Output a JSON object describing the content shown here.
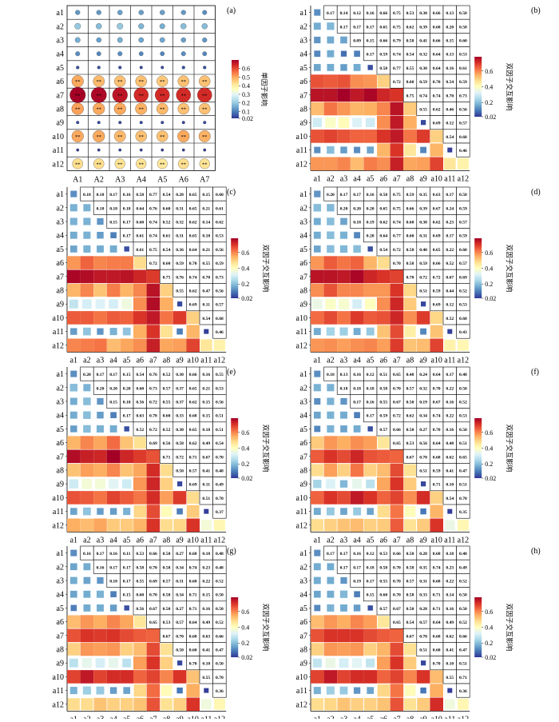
{
  "figure": {
    "panel_letters": [
      "(a)",
      "(b)",
      "(c)",
      "(d)",
      "(e)",
      "(f)",
      "(g)",
      "(h)"
    ]
  },
  "colors": {
    "scale": [
      "#313695",
      "#4575b4",
      "#74add1",
      "#abd9e9",
      "#e0f3f8",
      "#ffffbf",
      "#fee090",
      "#fdae61",
      "#f46d43",
      "#d73027",
      "#a50026"
    ],
    "grid_line": "#000000",
    "background": "#ffffff"
  },
  "chart_data": [
    {
      "type": "heatmap",
      "panel": "(a)",
      "marker": "circle",
      "rows": [
        "a1",
        "a2",
        "a3",
        "a4",
        "a5",
        "a6",
        "a7",
        "a8",
        "a9",
        "a10",
        "a11",
        "a12"
      ],
      "columns": [
        "A1",
        "A2",
        "A3",
        "A4",
        "A5",
        "A6",
        "A7"
      ],
      "colorbar": {
        "ticks": [
          "0.6",
          "0.5",
          "0.4",
          "0.3",
          "0.2",
          "0.1",
          "0.02"
        ],
        "min": 0.02,
        "max": 0.7,
        "label": "单因子影响"
      },
      "values": [
        [
          0.13,
          0.13,
          0.14,
          0.14,
          0.14,
          0.13,
          0.12
        ],
        [
          0.2,
          0.18,
          0.2,
          0.17,
          0.16,
          0.18,
          0.18
        ],
        [
          0.16,
          0.14,
          0.16,
          0.15,
          0.15,
          0.14,
          0.13
        ],
        [
          0.12,
          0.11,
          0.12,
          0.11,
          0.11,
          0.12,
          0.11
        ],
        [
          0.05,
          0.05,
          0.05,
          0.04,
          0.04,
          0.05,
          0.05
        ],
        [
          0.5,
          0.48,
          0.47,
          0.47,
          0.46,
          0.47,
          0.47
        ],
        [
          0.7,
          0.69,
          0.67,
          0.64,
          0.64,
          0.64,
          0.64
        ],
        [
          0.51,
          0.5,
          0.5,
          0.49,
          0.48,
          0.47,
          0.47
        ],
        [
          0.04,
          0.04,
          0.04,
          0.04,
          0.04,
          0.04,
          0.04
        ],
        [
          0.5,
          0.5,
          0.48,
          0.47,
          0.47,
          0.5,
          0.49
        ],
        [
          0.03,
          0.03,
          0.03,
          0.03,
          0.03,
          0.03,
          0.03
        ],
        [
          0.43,
          0.43,
          0.42,
          0.42,
          0.41,
          0.43,
          0.42
        ]
      ],
      "stars": [
        [
          "",
          "",
          "",
          "",
          "",
          "",
          ""
        ],
        [
          "",
          "",
          "",
          "",
          "",
          "",
          ""
        ],
        [
          "",
          "",
          "",
          "",
          "",
          "",
          ""
        ],
        [
          "",
          "",
          "",
          "",
          "",
          "",
          ""
        ],
        [
          "",
          "",
          "",
          "",
          "",
          "",
          ""
        ],
        [
          "**",
          "**",
          "**",
          "**",
          "**",
          "**",
          "**"
        ],
        [
          "**",
          "**",
          "**",
          "**",
          "**",
          "**",
          "**"
        ],
        [
          "**",
          "**",
          "**",
          "**",
          "**",
          "**",
          "**"
        ],
        [
          "",
          "",
          "",
          "",
          "",
          "",
          ""
        ],
        [
          "**",
          "**",
          "**",
          "**",
          "**",
          "**",
          "**"
        ],
        [
          "",
          "",
          "",
          "",
          "",
          "",
          ""
        ],
        [
          "**",
          "**",
          "**",
          "**",
          "**",
          "**",
          "**"
        ]
      ]
    },
    {
      "type": "heatmap",
      "panel": "(b)",
      "marker": "square",
      "labels": [
        "a1",
        "a2",
        "a3",
        "a4",
        "a5",
        "a6",
        "a7",
        "a8",
        "a9",
        "a10",
        "a11",
        "a12"
      ],
      "colorbar": {
        "ticks": [
          "0.6",
          "0.4",
          "0.2",
          "0.02"
        ],
        "min": 0.02,
        "max": 0.78,
        "label": "双因子交互影响"
      },
      "upper": [
        [
          "0.17",
          "0.14",
          "0.12",
          "0.16",
          "0.66",
          "0.75",
          "0.53",
          "0.30",
          "0.66",
          "0.13",
          "0.58"
        ],
        [
          "0.17",
          "0.17",
          "0.17",
          "0.65",
          "0.75",
          "0.62",
          "0.39",
          "0.68",
          "0.20",
          "0.58"
        ],
        [
          "0.09",
          "0.15",
          "0.66",
          "0.79",
          "0.58",
          "0.41",
          "0.66",
          "0.15",
          "0.60"
        ],
        [
          "0.17",
          "0.59",
          "0.74",
          "0.54",
          "0.32",
          "0.64",
          "0.13",
          "0.53"
        ],
        [
          "0.58",
          "0.77",
          "0.55",
          "0.30",
          "0.64",
          "0.16",
          "0.61"
        ],
        [
          "0.72",
          "0.60",
          "0.59",
          "0.70",
          "0.54",
          "0.59"
        ],
        [
          "0.75",
          "0.74",
          "0.74",
          "0.70",
          "0.73"
        ],
        [
          "0.55",
          "0.62",
          "0.46",
          "0.56"
        ],
        [
          "0.69",
          "0.12",
          "0.57"
        ],
        [
          "0.54",
          "0.68"
        ],
        [
          "0.46"
        ]
      ],
      "diag": [
        0.13,
        0.19,
        0.16,
        0.11,
        0.05,
        0.5,
        0.7,
        0.51,
        0.04,
        0.5,
        0.03,
        0.43
      ]
    },
    {
      "type": "heatmap",
      "panel": "(c)",
      "marker": "square",
      "labels": [
        "a1",
        "a2",
        "a3",
        "a4",
        "a5",
        "a6",
        "a7",
        "a8",
        "a9",
        "a10",
        "a11",
        "a12"
      ],
      "colorbar": {
        "ticks": [
          "0.6",
          "0.4",
          "0.2",
          "0.02"
        ],
        "min": 0.02,
        "max": 0.78,
        "label": "双因子交互影响"
      },
      "upper": [
        [
          "0.18",
          "0.18",
          "0.17",
          "0.16",
          "0.58",
          "0.77",
          "0.54",
          "0.28",
          "0.65",
          "0.15",
          "0.60"
        ],
        [
          "0.18",
          "0.18",
          "0.18",
          "0.64",
          "0.76",
          "0.60",
          "0.31",
          "0.65",
          "0.21",
          "0.61"
        ],
        [
          "0.15",
          "0.17",
          "0.60",
          "0.74",
          "0.52",
          "0.32",
          "0.62",
          "0.14",
          "0.62"
        ],
        [
          "0.17",
          "0.61",
          "0.74",
          "0.61",
          "0.31",
          "0.65",
          "0.18",
          "0.53"
        ],
        [
          "0.61",
          "0.75",
          "0.54",
          "0.36",
          "0.64",
          "0.21",
          "0.56"
        ],
        [
          "0.72",
          "0.60",
          "0.59",
          "0.70",
          "0.55",
          "0.59"
        ],
        [
          "0.75",
          "0.76",
          "0.74",
          "0.70",
          "0.73"
        ],
        [
          "0.55",
          "0.62",
          "0.47",
          "0.56"
        ],
        [
          "0.69",
          "0.11",
          "0.57"
        ],
        [
          "0.54",
          "0.68"
        ],
        [
          "0.46"
        ]
      ],
      "diag": [
        0.13,
        0.18,
        0.14,
        0.11,
        0.05,
        0.48,
        0.69,
        0.5,
        0.04,
        0.5,
        0.03,
        0.43
      ]
    },
    {
      "type": "heatmap",
      "panel": "(d)",
      "marker": "square",
      "labels": [
        "a1",
        "a2",
        "a3",
        "a4",
        "a5",
        "a6",
        "a7",
        "a8",
        "a9",
        "a10",
        "a11",
        "a12"
      ],
      "colorbar": {
        "ticks": [
          "0.6",
          "0.4",
          "0.2",
          "0.02"
        ],
        "min": 0.02,
        "max": 0.78,
        "label": "双因子交互影响"
      },
      "upper": [
        [
          "0.20",
          "0.17",
          "0.17",
          "0.16",
          "0.58",
          "0.75",
          "0.59",
          "0.35",
          "0.63",
          "0.17",
          "0.58"
        ],
        [
          "0.20",
          "0.20",
          "0.20",
          "0.65",
          "0.75",
          "0.66",
          "0.39",
          "0.67",
          "0.24",
          "0.59"
        ],
        [
          "0.18",
          "0.19",
          "0.62",
          "0.74",
          "0.60",
          "0.38",
          "0.62",
          "0.23",
          "0.57"
        ],
        [
          "0.20",
          "0.64",
          "0.77",
          "0.60",
          "0.31",
          "0.69",
          "0.17",
          "0.59"
        ],
        [
          "0.54",
          "0.72",
          "0.58",
          "0.40",
          "0.65",
          "0.22",
          "0.60"
        ],
        [
          "0.70",
          "0.58",
          "0.59",
          "0.66",
          "0.52",
          "0.57"
        ],
        [
          "0.70",
          "0.72",
          "0.72",
          "0.67",
          "0.69"
        ],
        [
          "0.51",
          "0.59",
          "0.44",
          "0.52"
        ],
        [
          "0.69",
          "0.12",
          "0.53"
        ],
        [
          "0.52",
          "0.68"
        ],
        [
          "0.43"
        ]
      ],
      "diag": [
        0.14,
        0.19,
        0.16,
        0.12,
        0.05,
        0.48,
        0.68,
        0.49,
        0.04,
        0.49,
        0.03,
        0.42
      ]
    },
    {
      "type": "heatmap",
      "panel": "(e)",
      "marker": "square",
      "labels": [
        "a1",
        "a2",
        "a3",
        "a4",
        "a5",
        "a6",
        "a7",
        "a8",
        "a9",
        "a10",
        "a11",
        "a12"
      ],
      "colorbar": {
        "ticks": [
          "0.6",
          "0.4",
          "0.2",
          "0.02"
        ],
        "min": 0.02,
        "max": 0.78,
        "label": "双因子交互影响"
      },
      "upper": [
        [
          "0.20",
          "0.17",
          "0.17",
          "0.15",
          "0.54",
          "0.76",
          "0.52",
          "0.30",
          "0.66",
          "0.16",
          "0.55"
        ],
        [
          "0.20",
          "0.20",
          "0.20",
          "0.60",
          "0.73",
          "0.57",
          "0.37",
          "0.65",
          "0.21",
          "0.53"
        ],
        [
          "0.15",
          "0.18",
          "0.56",
          "0.72",
          "0.55",
          "0.37",
          "0.62",
          "0.15",
          "0.56"
        ],
        [
          "0.17",
          "0.63",
          "0.78",
          "0.60",
          "0.33",
          "0.68",
          "0.15",
          "0.51"
        ],
        [
          "0.52",
          "0.72",
          "0.52",
          "0.30",
          "0.65",
          "0.18",
          "0.51"
        ],
        [
          "0.69",
          "0.56",
          "0.58",
          "0.62",
          "0.49",
          "0.54"
        ],
        [
          "0.71",
          "0.72",
          "0.71",
          "0.67",
          "0.70"
        ],
        [
          "0.50",
          "0.57",
          "0.41",
          "0.48"
        ],
        [
          "0.69",
          "0.11",
          "0.49"
        ],
        [
          "0.51",
          "0.70"
        ],
        [
          "0.37"
        ]
      ],
      "diag": [
        0.13,
        0.18,
        0.14,
        0.11,
        0.05,
        0.47,
        0.66,
        0.48,
        0.04,
        0.48,
        0.03,
        0.42
      ]
    },
    {
      "type": "heatmap",
      "panel": "(f)",
      "marker": "square",
      "labels": [
        "a1",
        "a2",
        "a3",
        "a4",
        "a5",
        "a6",
        "a7",
        "a8",
        "a9",
        "a10",
        "a11",
        "a12"
      ],
      "colorbar": {
        "ticks": [
          "0.6",
          "0.4",
          "0.2",
          "0.02"
        ],
        "min": 0.02,
        "max": 0.78,
        "label": "双因子交互影响"
      },
      "upper": [
        [
          "0.18",
          "0.13",
          "0.16",
          "0.12",
          "0.51",
          "0.65",
          "0.48",
          "0.24",
          "0.64",
          "0.17",
          "0.48"
        ],
        [
          "0.18",
          "0.18",
          "0.18",
          "0.58",
          "0.70",
          "0.57",
          "0.32",
          "0.70",
          "0.22",
          "0.50"
        ],
        [
          "0.17",
          "0.16",
          "0.55",
          "0.67",
          "0.50",
          "0.19",
          "0.67",
          "0.16",
          "0.52"
        ],
        [
          "0.17",
          "0.59",
          "0.72",
          "0.62",
          "0.34",
          "0.74",
          "0.22",
          "0.53"
        ],
        [
          "0.57",
          "0.66",
          "0.50",
          "0.27",
          "0.70",
          "0.16",
          "0.50"
        ],
        [
          "0.65",
          "0.53",
          "0.56",
          "0.64",
          "0.48",
          "0.51"
        ],
        [
          "0.67",
          "0.70",
          "0.68",
          "0.62",
          "0.65"
        ],
        [
          "0.51",
          "0.59",
          "0.41",
          "0.47"
        ],
        [
          "0.71",
          "0.10",
          "0.51"
        ],
        [
          "0.54",
          "0.70"
        ],
        [
          "0.35"
        ]
      ],
      "diag": [
        0.13,
        0.18,
        0.14,
        0.11,
        0.05,
        0.46,
        0.64,
        0.47,
        0.04,
        0.5,
        0.03,
        0.42
      ]
    },
    {
      "type": "heatmap",
      "panel": "(g)",
      "marker": "square",
      "labels": [
        "a1",
        "a2",
        "a3",
        "a4",
        "a5",
        "a6",
        "a7",
        "a8",
        "a9",
        "a10",
        "a11",
        "a12"
      ],
      "colorbar": {
        "ticks": [
          "0.6",
          "0.4",
          "0.2",
          "0.02"
        ],
        "min": 0.02,
        "max": 0.78,
        "label": "双因子交互影响"
      },
      "upper": [
        [
          "0.16",
          "0.17",
          "0.16",
          "0.11",
          "0.53",
          "0.66",
          "0.50",
          "0.27",
          "0.68",
          "0.18",
          "0.48"
        ],
        [
          "0.16",
          "0.17",
          "0.17",
          "0.58",
          "0.70",
          "0.58",
          "0.34",
          "0.74",
          "0.23",
          "0.48"
        ],
        [
          "0.18",
          "0.17",
          "0.55",
          "0.69",
          "0.57",
          "0.31",
          "0.68",
          "0.22",
          "0.52"
        ],
        [
          "0.15",
          "0.60",
          "0.70",
          "0.58",
          "0.34",
          "0.71",
          "0.15",
          "0.50"
        ],
        [
          "0.56",
          "0.67",
          "0.50",
          "0.27",
          "0.71",
          "0.16",
          "0.50"
        ],
        [
          "0.65",
          "0.53",
          "0.57",
          "0.64",
          "0.49",
          "0.52"
        ],
        [
          "0.67",
          "0.70",
          "0.68",
          "0.63",
          "0.66"
        ],
        [
          "0.50",
          "0.60",
          "0.41",
          "0.47"
        ],
        [
          "0.70",
          "0.10",
          "0.50"
        ],
        [
          "0.55",
          "0.70"
        ],
        [
          "0.36"
        ]
      ],
      "diag": [
        0.13,
        0.17,
        0.14,
        0.11,
        0.05,
        0.46,
        0.64,
        0.47,
        0.04,
        0.52,
        0.03,
        0.42
      ]
    },
    {
      "type": "heatmap",
      "panel": "(h)",
      "marker": "square",
      "labels": [
        "a1",
        "a2",
        "a3",
        "a4",
        "a5",
        "a6",
        "a7",
        "a8",
        "a9",
        "a10",
        "a11",
        "a12"
      ],
      "colorbar": {
        "ticks": [
          "0.6",
          "0.4",
          "0.2",
          "0.02"
        ],
        "min": 0.02,
        "max": 0.78,
        "label": "双因子交互影响"
      },
      "upper": [
        [
          "0.17",
          "0.17",
          "0.16",
          "0.12",
          "0.53",
          "0.66",
          "0.50",
          "0.28",
          "0.68",
          "0.18",
          "0.48"
        ],
        [
          "0.17",
          "0.17",
          "0.18",
          "0.58",
          "0.70",
          "0.58",
          "0.35",
          "0.74",
          "0.23",
          "0.49"
        ],
        [
          "0.19",
          "0.17",
          "0.55",
          "0.70",
          "0.57",
          "0.31",
          "0.68",
          "0.22",
          "0.52"
        ],
        [
          "0.15",
          "0.60",
          "0.70",
          "0.58",
          "0.33",
          "0.71",
          "0.14",
          "0.50"
        ],
        [
          "0.57",
          "0.67",
          "0.50",
          "0.28",
          "0.71",
          "0.16",
          "0.50"
        ],
        [
          "0.65",
          "0.54",
          "0.57",
          "0.64",
          "0.49",
          "0.52"
        ],
        [
          "0.67",
          "0.70",
          "0.68",
          "0.62",
          "0.66"
        ],
        [
          "0.51",
          "0.60",
          "0.41",
          "0.47"
        ],
        [
          "0.70",
          "0.10",
          "0.51"
        ],
        [
          "0.55",
          "0.71"
        ],
        [
          "0.36"
        ]
      ],
      "diag": [
        0.13,
        0.17,
        0.14,
        0.11,
        0.05,
        0.46,
        0.64,
        0.47,
        0.04,
        0.53,
        0.03,
        0.42
      ]
    }
  ]
}
